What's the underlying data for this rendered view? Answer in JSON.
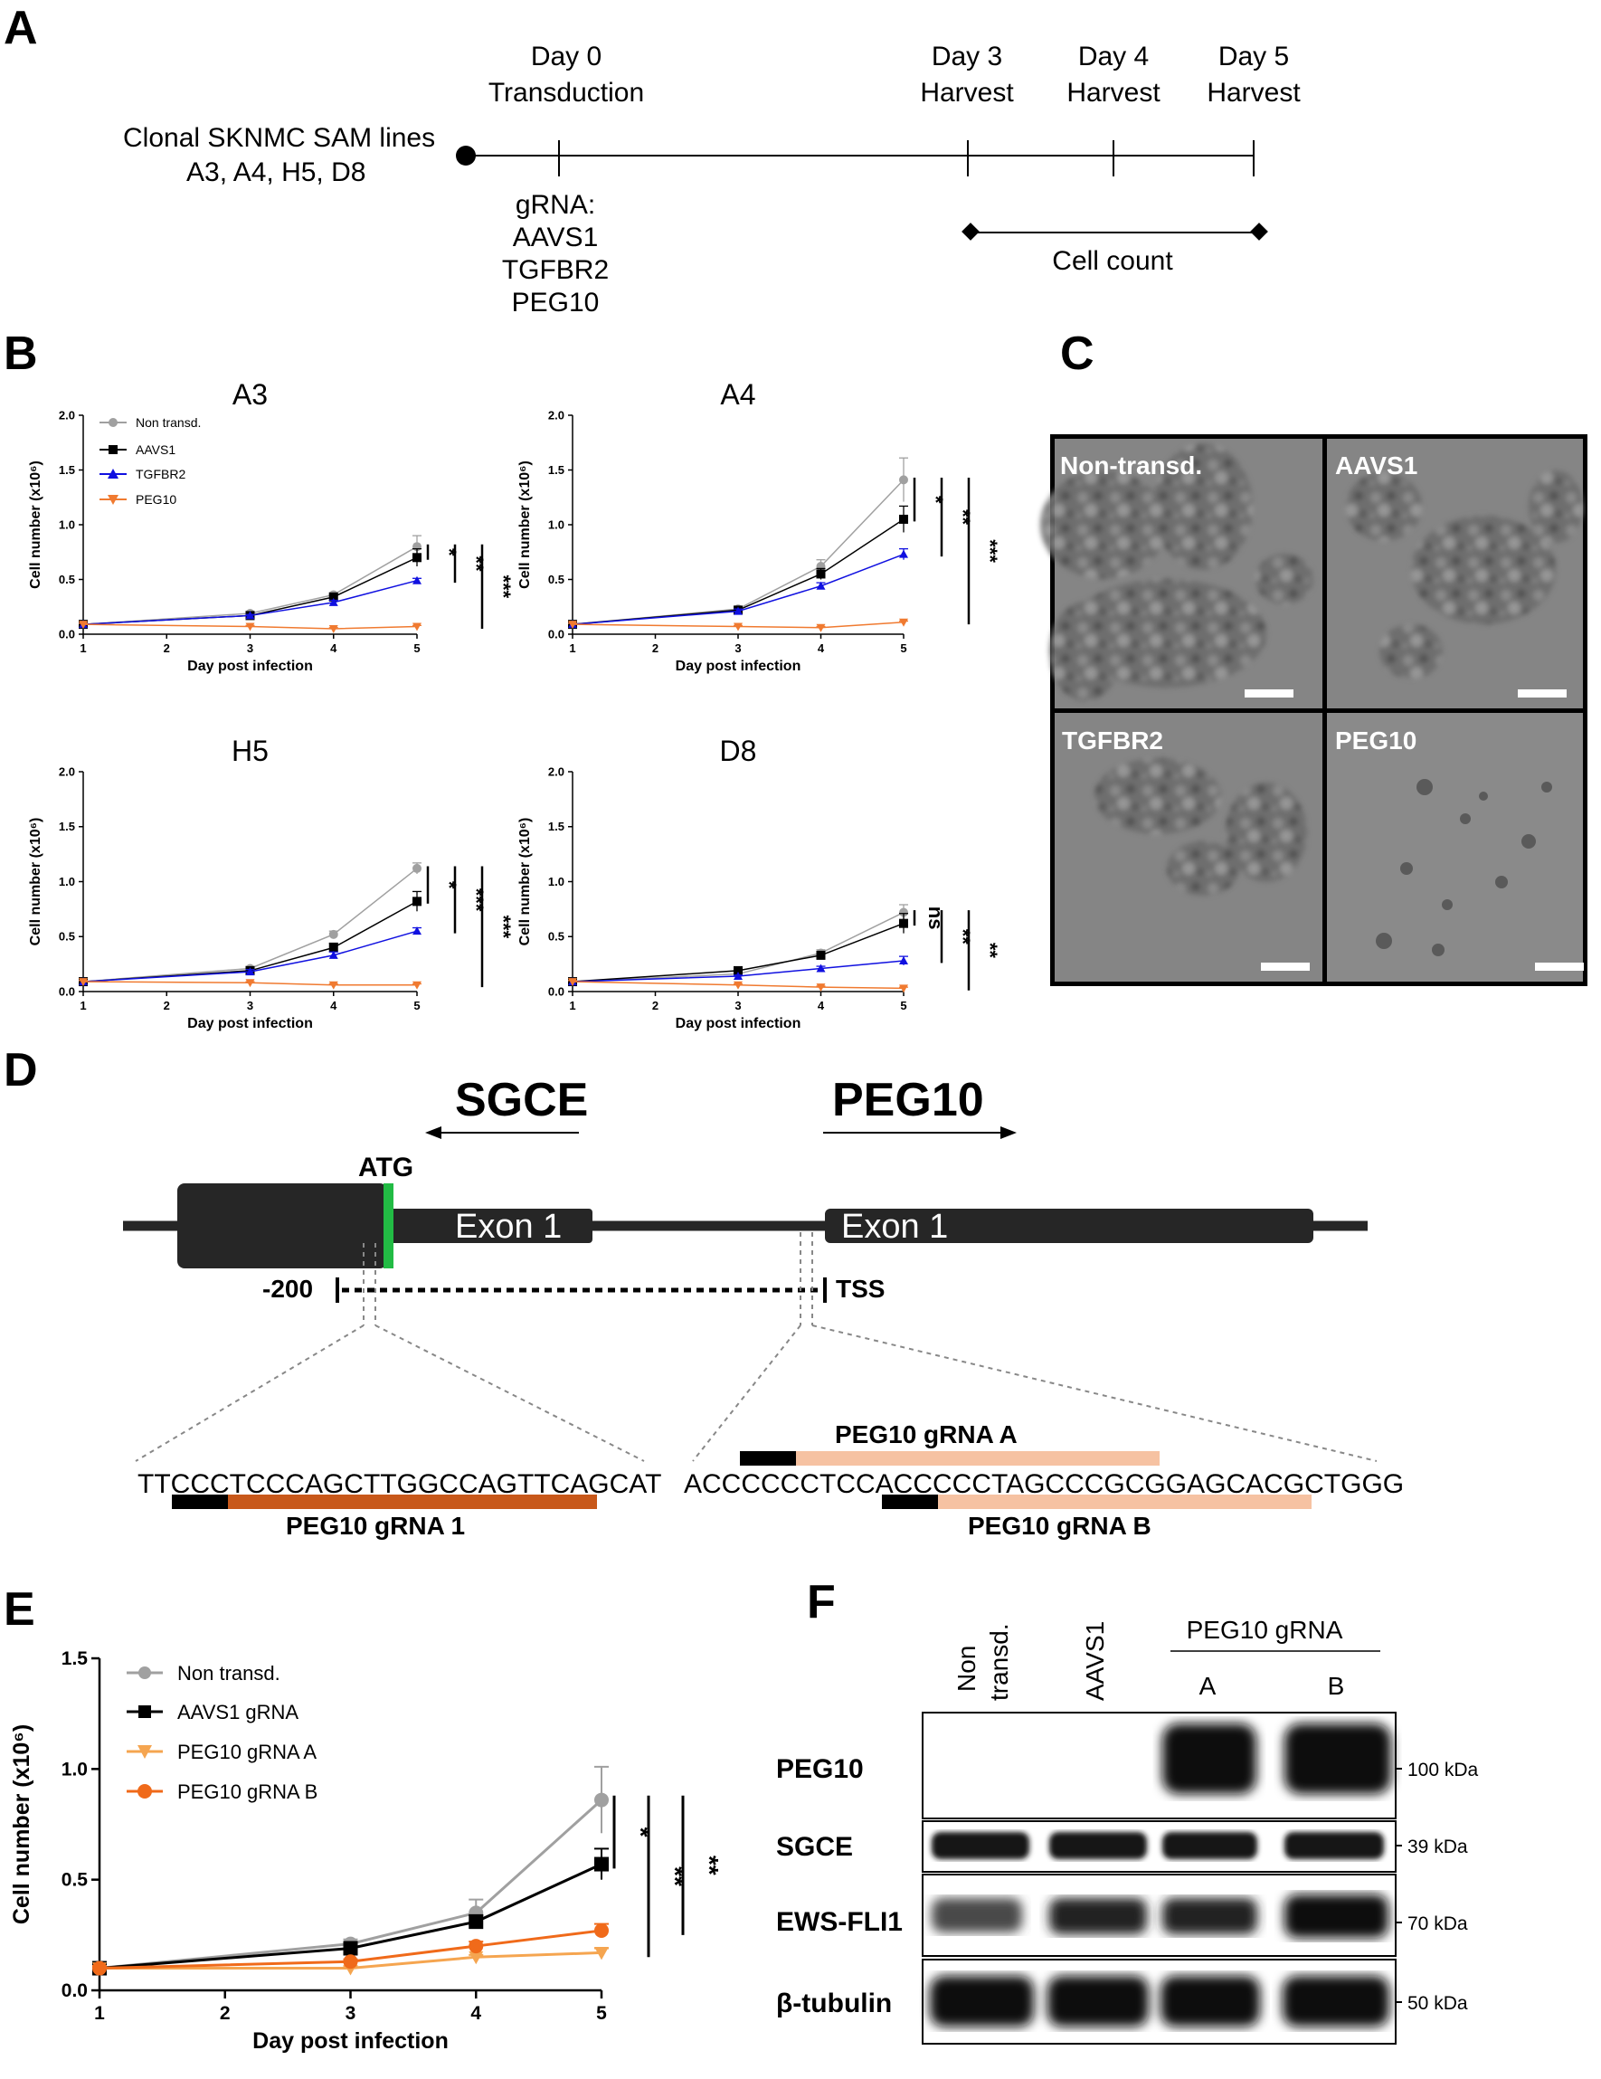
{
  "panels": {
    "A": "A",
    "B": "B",
    "C": "C",
    "D": "D",
    "E": "E",
    "F": "F"
  },
  "panel_a": {
    "cell_lines_title": "Clonal SKNMC SAM lines",
    "cell_lines_list": "A3, A4, H5, D8",
    "day0": "Day 0",
    "transduction": "Transduction",
    "day3": "Day 3",
    "day4": "Day 4",
    "day5": "Day 5",
    "harvest": "Harvest",
    "grna_label": "gRNA:",
    "grna_list": [
      "AAVS1",
      "TGFBR2",
      "PEG10"
    ],
    "cell_count": "Cell count"
  },
  "legend_b": [
    "Non transd.",
    "AAVS1",
    "TGFBR2",
    "PEG10"
  ],
  "colors": {
    "non_transd": "#a0a0a0",
    "aavs1": "#000000",
    "tgfbr2": "#1010e0",
    "peg10": "#f07a30",
    "peg10_grna_a": "#f5a550",
    "peg10_grna_b": "#f06a1a",
    "exon": "#262626",
    "atg": "#22bb44",
    "grna1": "#c8581a",
    "grna_ab": "#f6c2a2"
  },
  "chart_data": [
    {
      "type": "line",
      "id": "A3",
      "title": "A3",
      "xlabel": "Day post infection",
      "ylabel": "Cell number (x10⁶)",
      "x": [
        1,
        3,
        4,
        5
      ],
      "xticks": [
        "1",
        "2",
        "3",
        "4",
        "5"
      ],
      "yticks": [
        "0.0",
        "0.5",
        "1.0",
        "1.5",
        "2.0"
      ],
      "ylim": [
        0,
        2.0
      ],
      "series": [
        {
          "name": "Non transd.",
          "values": [
            0.09,
            0.19,
            0.36,
            0.8
          ],
          "err": [
            0.01,
            0.02,
            0.02,
            0.1
          ]
        },
        {
          "name": "AAVS1",
          "values": [
            0.09,
            0.17,
            0.34,
            0.7
          ],
          "err": [
            0.01,
            0.02,
            0.02,
            0.08
          ]
        },
        {
          "name": "TGFBR2",
          "values": [
            0.09,
            0.17,
            0.29,
            0.49
          ],
          "err": [
            0.01,
            0.01,
            0.02,
            0.02
          ]
        },
        {
          "name": "PEG10",
          "values": [
            0.09,
            0.07,
            0.05,
            0.07
          ],
          "err": [
            0.01,
            0.01,
            0.01,
            0.01
          ]
        }
      ],
      "significance": [
        "*",
        "**",
        "***"
      ]
    },
    {
      "type": "line",
      "id": "A4",
      "title": "A4",
      "xlabel": "Day post infection",
      "ylabel": "Cell number (x10⁶)",
      "x": [
        1,
        3,
        4,
        5
      ],
      "xticks": [
        "1",
        "2",
        "3",
        "4",
        "5"
      ],
      "yticks": [
        "0.0",
        "0.5",
        "1.0",
        "1.5",
        "2.0"
      ],
      "ylim": [
        0,
        2.0
      ],
      "series": [
        {
          "name": "Non transd.",
          "values": [
            0.09,
            0.23,
            0.62,
            1.41
          ],
          "err": [
            0.01,
            0.02,
            0.06,
            0.2
          ]
        },
        {
          "name": "AAVS1",
          "values": [
            0.09,
            0.22,
            0.55,
            1.05
          ],
          "err": [
            0.01,
            0.02,
            0.05,
            0.12
          ]
        },
        {
          "name": "TGFBR2",
          "values": [
            0.09,
            0.21,
            0.44,
            0.73
          ],
          "err": [
            0.01,
            0.02,
            0.03,
            0.05
          ]
        },
        {
          "name": "PEG10",
          "values": [
            0.09,
            0.07,
            0.06,
            0.11
          ],
          "err": [
            0.01,
            0.01,
            0.01,
            0.01
          ]
        }
      ],
      "significance": [
        "*",
        "**",
        "***"
      ]
    },
    {
      "type": "line",
      "id": "H5",
      "title": "H5",
      "xlabel": "Day post infection",
      "ylabel": "Cell number (x10⁶)",
      "x": [
        1,
        3,
        4,
        5
      ],
      "xticks": [
        "1",
        "2",
        "3",
        "4",
        "5"
      ],
      "yticks": [
        "0.0",
        "0.5",
        "1.0",
        "1.5",
        "2.0"
      ],
      "ylim": [
        0,
        2.0
      ],
      "series": [
        {
          "name": "Non transd.",
          "values": [
            0.09,
            0.21,
            0.52,
            1.12
          ],
          "err": [
            0.01,
            0.02,
            0.03,
            0.05
          ]
        },
        {
          "name": "AAVS1",
          "values": [
            0.09,
            0.19,
            0.4,
            0.82
          ],
          "err": [
            0.01,
            0.02,
            0.04,
            0.09
          ]
        },
        {
          "name": "TGFBR2",
          "values": [
            0.09,
            0.18,
            0.33,
            0.55
          ],
          "err": [
            0.01,
            0.02,
            0.03,
            0.03
          ]
        },
        {
          "name": "PEG10",
          "values": [
            0.09,
            0.08,
            0.06,
            0.06
          ],
          "err": [
            0.01,
            0.01,
            0.01,
            0.01
          ]
        }
      ],
      "significance": [
        "*",
        "***",
        "***"
      ]
    },
    {
      "type": "line",
      "id": "D8",
      "title": "D8",
      "xlabel": "Day post infection",
      "ylabel": "Cell number (x10⁶)",
      "x": [
        1,
        3,
        4,
        5
      ],
      "xticks": [
        "1",
        "2",
        "3",
        "4",
        "5"
      ],
      "yticks": [
        "0.0",
        "0.5",
        "1.0",
        "1.5",
        "2.0"
      ],
      "ylim": [
        0,
        2.0
      ],
      "series": [
        {
          "name": "Non transd.",
          "values": [
            0.09,
            0.16,
            0.35,
            0.72
          ],
          "err": [
            0.01,
            0.02,
            0.03,
            0.07
          ]
        },
        {
          "name": "AAVS1",
          "values": [
            0.09,
            0.19,
            0.33,
            0.62
          ],
          "err": [
            0.01,
            0.02,
            0.03,
            0.09
          ]
        },
        {
          "name": "TGFBR2",
          "values": [
            0.09,
            0.14,
            0.21,
            0.28
          ],
          "err": [
            0.01,
            0.01,
            0.02,
            0.04
          ]
        },
        {
          "name": "PEG10",
          "values": [
            0.09,
            0.06,
            0.04,
            0.03
          ],
          "err": [
            0.01,
            0.01,
            0.01,
            0.01
          ]
        }
      ],
      "significance": [
        "ns",
        "**",
        "**"
      ]
    },
    {
      "type": "line",
      "id": "E",
      "xlabel": "Day post infection",
      "ylabel": "Cell number (x10⁶)",
      "x": [
        1,
        3,
        4,
        5
      ],
      "xticks": [
        "1",
        "2",
        "3",
        "4",
        "5"
      ],
      "yticks": [
        "0.0",
        "0.5",
        "1.0",
        "1.5"
      ],
      "ylim": [
        0,
        1.5
      ],
      "series": [
        {
          "name": "Non transd.",
          "values": [
            0.1,
            0.21,
            0.35,
            0.86
          ],
          "err": [
            0.01,
            0.02,
            0.06,
            0.15
          ]
        },
        {
          "name": "AAVS1 gRNA",
          "values": [
            0.1,
            0.19,
            0.31,
            0.57
          ],
          "err": [
            0.01,
            0.02,
            0.03,
            0.07
          ]
        },
        {
          "name": "PEG10 gRNA A",
          "values": [
            0.1,
            0.1,
            0.15,
            0.17
          ],
          "err": [
            0.01,
            0.01,
            0.01,
            0.02
          ]
        },
        {
          "name": "PEG10 gRNA B",
          "values": [
            0.1,
            0.13,
            0.2,
            0.27
          ],
          "err": [
            0.01,
            0.01,
            0.02,
            0.03
          ]
        }
      ],
      "significance": [
        "*",
        "**",
        "**"
      ]
    }
  ],
  "panel_c": {
    "labels": [
      "Non-transd.",
      "AAVS1",
      "TGFBR2",
      "PEG10"
    ]
  },
  "panel_d": {
    "gene_left": "SGCE",
    "gene_right": "PEG10",
    "atg": "ATG",
    "exon_label": "Exon 1",
    "minus200": "-200",
    "tss": "TSS",
    "seq_left": "TTCCCTCCCAGCTTGGCCAGTTCAGCAT",
    "seq_right": "ACCCCCCTCCACCCCCTAGCCCGCGGAGCACGCTGGG",
    "grna1": "PEG10 gRNA 1",
    "grnaA": "PEG10 gRNA A",
    "grnaB": "PEG10 gRNA B"
  },
  "panel_f": {
    "lanes": [
      "Non\ntransd.",
      "AAVS1"
    ],
    "lane_non": "Non",
    "lane_transd": "transd.",
    "lane_aavs1": "AAVS1",
    "group_header": "PEG10 gRNA",
    "lane_a": "A",
    "lane_b": "B",
    "rows": [
      "PEG10",
      "SGCE",
      "EWS-FLI1",
      "β-tubulin"
    ],
    "sizes": [
      "100 kDa",
      "39 kDa",
      "70 kDa",
      "50 kDa"
    ]
  }
}
